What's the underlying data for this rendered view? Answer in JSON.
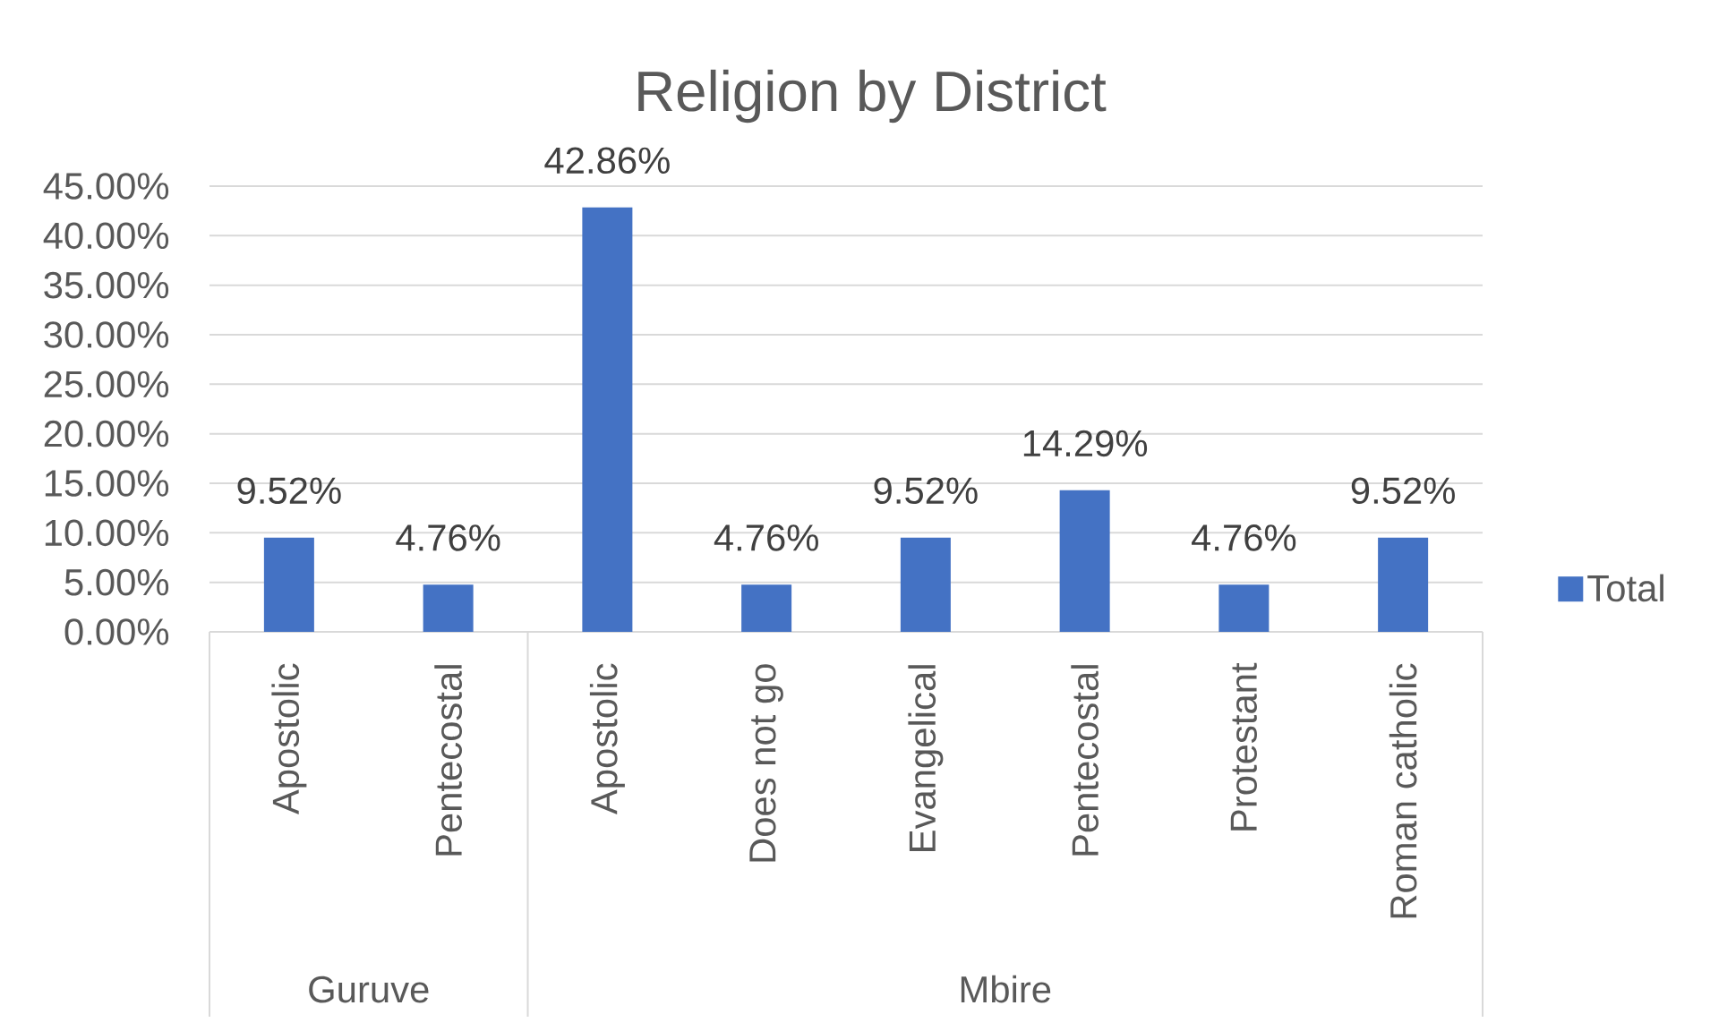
{
  "chart_data": {
    "type": "bar",
    "title": "Religion by District",
    "categories": [
      "Apostolic",
      "Pentecostal",
      "Apostolic",
      "Does not go",
      "Evangelical",
      "Pentecostal",
      "Protestant",
      "Roman catholic"
    ],
    "series": [
      {
        "name": "Total",
        "color": "#4472c4",
        "values": [
          9.52,
          4.76,
          42.86,
          4.76,
          9.52,
          14.29,
          4.76,
          9.52
        ],
        "value_labels": [
          "9.52%",
          "4.76%",
          "42.86%",
          "4.76%",
          "9.52%",
          "14.29%",
          "4.76%",
          "9.52%"
        ]
      }
    ],
    "annotations": [
      "Guruve",
      "Mbire"
    ],
    "ylim": [
      0,
      45
    ],
    "yticks": [
      {
        "value": 0,
        "label": "0.00%"
      },
      {
        "value": 5,
        "label": "5.00%"
      },
      {
        "value": 10,
        "label": "10.00%"
      },
      {
        "value": 15,
        "label": "15.00%"
      },
      {
        "value": 20,
        "label": "20.00%"
      },
      {
        "value": 25,
        "label": "25.00%"
      },
      {
        "value": 30,
        "label": "30.00%"
      },
      {
        "value": 35,
        "label": "35.00%"
      },
      {
        "value": 40,
        "label": "40.00%"
      },
      {
        "value": 45,
        "label": "45.00%"
      }
    ],
    "grid": "y",
    "legend": "right"
  }
}
